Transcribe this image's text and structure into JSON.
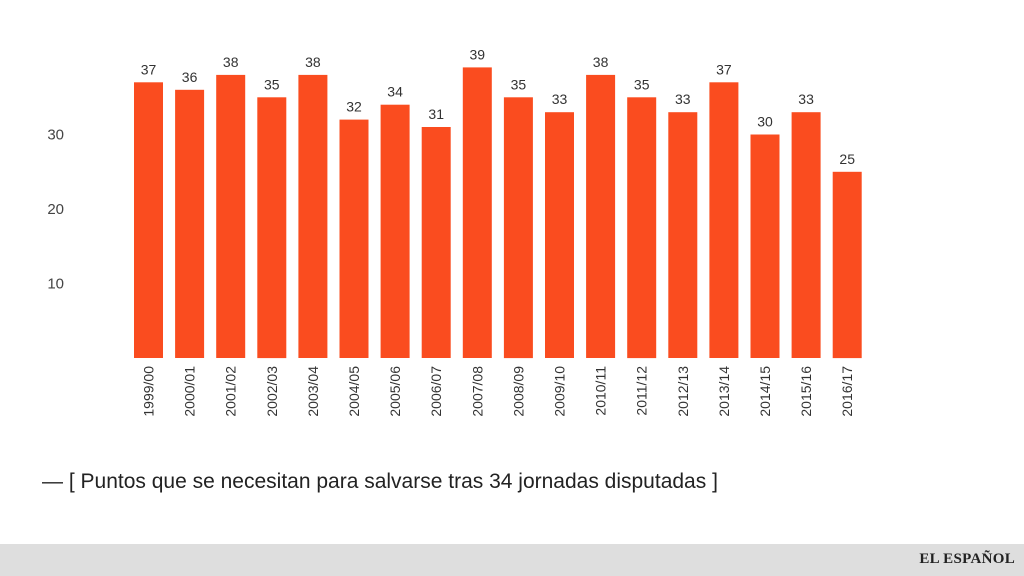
{
  "chart_data": {
    "type": "bar",
    "categories": [
      "1999/00",
      "2000/01",
      "2001/02",
      "2002/03",
      "2003/04",
      "2004/05",
      "2005/06",
      "2006/07",
      "2007/08",
      "2008/09",
      "2009/10",
      "2010/11",
      "2011/12",
      "2012/13",
      "2013/14",
      "2014/15",
      "2015/16",
      "2016/17"
    ],
    "values": [
      37,
      36,
      38,
      35,
      38,
      32,
      34,
      31,
      39,
      35,
      33,
      38,
      35,
      33,
      37,
      30,
      33,
      25
    ],
    "yticks": [
      10,
      20,
      30
    ],
    "ylim": [
      0,
      39
    ],
    "title": "",
    "xlabel": "",
    "ylabel": "",
    "bar_color": "#fa4c1f",
    "legend": "[ Puntos que se necesitan para salvarse tras 34 jornadas disputadas ]"
  },
  "caption": {
    "dash": "—",
    "text": "[ Puntos que se necesitan para salvarse tras 34 jornadas disputadas ]"
  },
  "footer": {
    "brand": "EL ESPAÑOL"
  },
  "colors": {
    "bar": "#fa4c1f",
    "footer_bg": "#dedede"
  }
}
